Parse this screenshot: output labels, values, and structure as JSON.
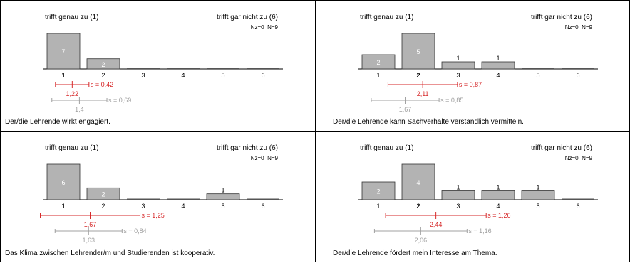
{
  "colors": {
    "bar": "#b3b3b3",
    "bar_stroke": "#333333",
    "red": "#d62728",
    "gray": "#a0a0a0",
    "axis": "#000000"
  },
  "chart_data": [
    {
      "type": "bar",
      "left_label": "trifft genau zu (1)",
      "right_label": "trifft gar nicht zu (6)",
      "nz_label": "Nz=0",
      "n_label": "N=9",
      "categories": [
        "1",
        "2",
        "3",
        "4",
        "5",
        "6"
      ],
      "values": [
        7,
        2,
        0,
        0,
        0,
        0
      ],
      "median": 1,
      "mean": 1.22,
      "sd": 0.42,
      "sd_label": "s = 0,42",
      "mean_label": "1,22",
      "comparison_mean": 1.4,
      "comparison_sd": 0.69,
      "comparison_sd_label": "s = 0,69",
      "comparison_mean_label": "1,4",
      "caption": "Der/die Lehrende wirkt engagiert."
    },
    {
      "type": "bar",
      "left_label": "trifft genau zu (1)",
      "right_label": "trifft gar nicht zu (6)",
      "nz_label": "Nz=0",
      "n_label": "N=9",
      "categories": [
        "1",
        "2",
        "3",
        "4",
        "5",
        "6"
      ],
      "values": [
        2,
        5,
        1,
        1,
        0,
        0
      ],
      "median": 2,
      "mean": 2.11,
      "sd": 0.87,
      "sd_label": "s = 0,87",
      "mean_label": "2,11",
      "comparison_mean": 1.67,
      "comparison_sd": 0.85,
      "comparison_sd_label": "s = 0,85",
      "comparison_mean_label": "1,67",
      "caption": "Der/die Lehrende kann Sachverhalte verständlich vermitteln."
    },
    {
      "type": "bar",
      "left_label": "trifft genau zu (1)",
      "right_label": "trifft gar nicht zu (6)",
      "nz_label": "Nz=0",
      "n_label": "N=9",
      "categories": [
        "1",
        "2",
        "3",
        "4",
        "5",
        "6"
      ],
      "values": [
        6,
        2,
        0,
        0,
        1,
        0
      ],
      "median": 1,
      "mean": 1.67,
      "sd": 1.25,
      "sd_label": "s = 1,25",
      "mean_label": "1,67",
      "comparison_mean": 1.63,
      "comparison_sd": 0.84,
      "comparison_sd_label": "s = 0,84",
      "comparison_mean_label": "1,63",
      "caption": "Das Klima zwischen Lehrender/m und Studierenden ist kooperativ."
    },
    {
      "type": "bar",
      "left_label": "trifft genau zu (1)",
      "right_label": "trifft gar nicht zu (6)",
      "nz_label": "Nz=0",
      "n_label": "N=9",
      "categories": [
        "1",
        "2",
        "3",
        "4",
        "5",
        "6"
      ],
      "values": [
        2,
        4,
        1,
        1,
        1,
        0
      ],
      "median": 2,
      "mean": 2.44,
      "sd": 1.26,
      "sd_label": "s = 1,26",
      "mean_label": "2,44",
      "comparison_mean": 2.06,
      "comparison_sd": 1.16,
      "comparison_sd_label": "s = 1,16",
      "comparison_mean_label": "2,06",
      "caption": "Der/die Lehrende fördert mein Interesse am Thema."
    }
  ]
}
